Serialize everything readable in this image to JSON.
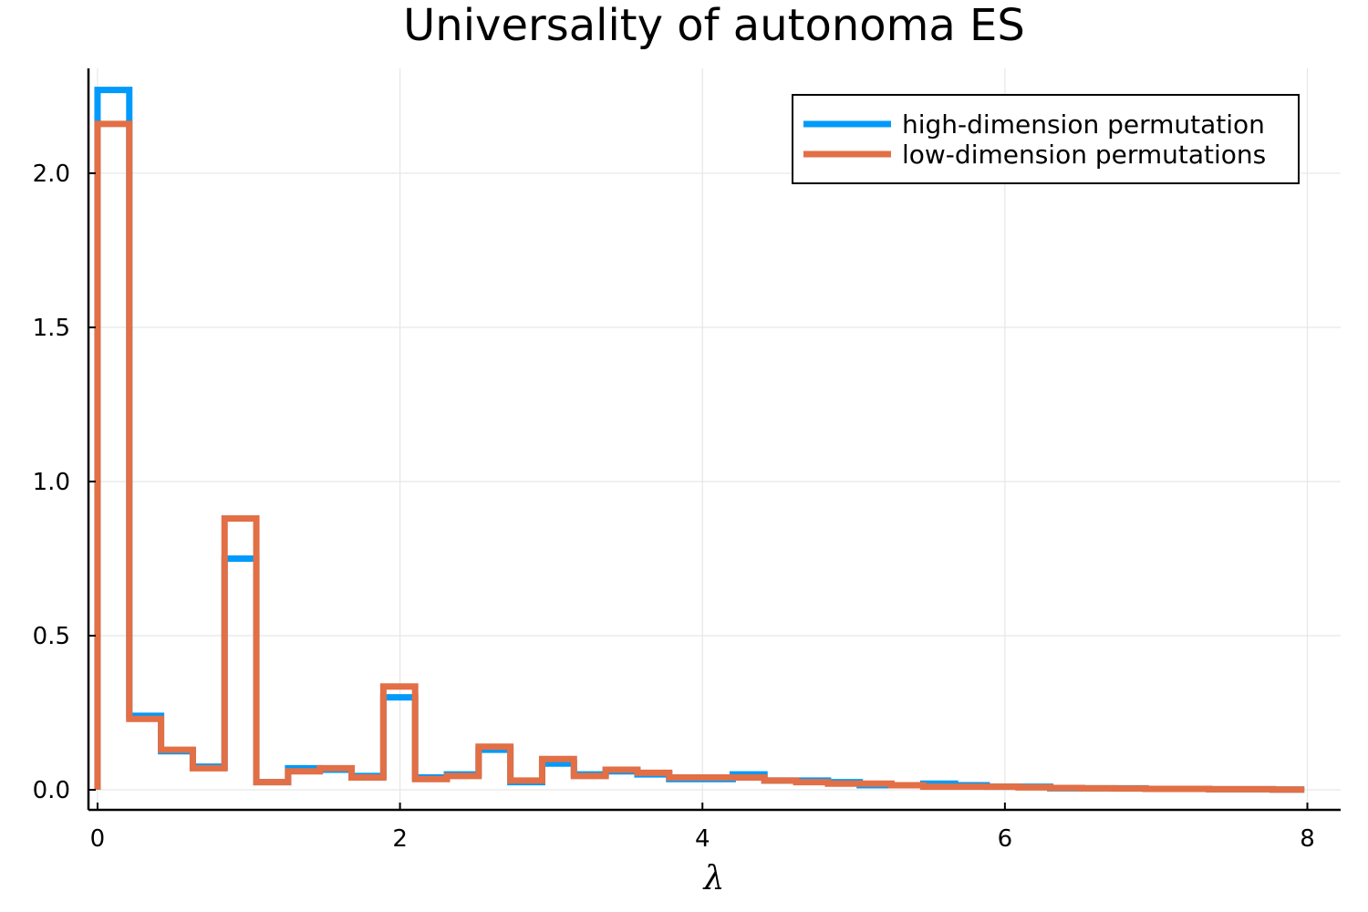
{
  "chart_data": {
    "type": "line",
    "subtype": "step-histogram",
    "title": "Universality of autonoma ES",
    "xlabel": "λ",
    "ylabel": "",
    "xlim": [
      -0.06,
      8.22
    ],
    "ylim": [
      -0.065,
      2.34
    ],
    "x_ticks": [
      0,
      2,
      4,
      6,
      8
    ],
    "x_tick_labels": [
      "0",
      "2",
      "4",
      "6",
      "8"
    ],
    "y_ticks": [
      0.0,
      0.5,
      1.0,
      1.5,
      2.0
    ],
    "y_tick_labels": [
      "0.0",
      "0.5",
      "1.0",
      "1.5",
      "2.0"
    ],
    "grid": true,
    "legend_position": "top-right",
    "bin_edges": [
      0,
      0.21,
      0.42,
      0.63,
      0.84,
      1.05,
      1.26,
      1.47,
      1.68,
      1.89,
      2.1,
      2.31,
      2.52,
      2.73,
      2.94,
      3.15,
      3.36,
      3.57,
      3.78,
      3.99,
      4.2,
      4.41,
      4.62,
      4.83,
      5.04,
      5.25,
      5.46,
      5.67,
      5.88,
      6.09,
      6.3,
      6.51,
      6.72,
      6.93,
      7.14,
      7.35,
      7.56,
      7.77,
      7.98
    ],
    "series": [
      {
        "name": "high-dimension permutation",
        "color": "#009AFA",
        "values": [
          2.27,
          0.24,
          0.125,
          0.075,
          0.75,
          0.025,
          0.07,
          0.065,
          0.045,
          0.3,
          0.04,
          0.05,
          0.13,
          0.025,
          0.085,
          0.05,
          0.06,
          0.05,
          0.035,
          0.035,
          0.05,
          0.03,
          0.03,
          0.025,
          0.015,
          0.015,
          0.02,
          0.015,
          0.01,
          0.01,
          0.005,
          0.005,
          0.005,
          0.003,
          0.003,
          0.002,
          0.002,
          0.001
        ]
      },
      {
        "name": "low-dimension permutations",
        "color": "#E26F46",
        "values": [
          2.16,
          0.23,
          0.13,
          0.07,
          0.88,
          0.025,
          0.06,
          0.07,
          0.04,
          0.335,
          0.035,
          0.045,
          0.14,
          0.03,
          0.1,
          0.045,
          0.065,
          0.055,
          0.04,
          0.04,
          0.04,
          0.03,
          0.025,
          0.02,
          0.02,
          0.015,
          0.01,
          0.01,
          0.01,
          0.008,
          0.006,
          0.005,
          0.004,
          0.003,
          0.003,
          0.002,
          0.002,
          0.001
        ]
      }
    ]
  }
}
